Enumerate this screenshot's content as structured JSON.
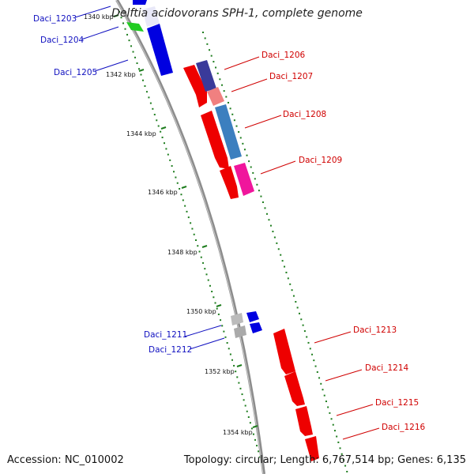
{
  "title": "Delftia acidovorans SPH-1, complete genome",
  "footer": {
    "accession": "Accession: NC_010002",
    "summary": "Topology: circular; Length: 6,767,514 bp; Genes: 6,135"
  },
  "colors": {
    "backbone": "#8c8c8c",
    "tick_green": "#1e7d1e",
    "label_blue": "#1010c0",
    "label_red": "#d00000"
  },
  "ticks": [
    {
      "label": "1340 kbp"
    },
    {
      "label": "1342 kbp"
    },
    {
      "label": "1344 kbp"
    },
    {
      "label": "1346 kbp"
    },
    {
      "label": "1348 kbp"
    },
    {
      "label": "1350 kbp"
    },
    {
      "label": "1352 kbp"
    },
    {
      "label": "1354 kbp"
    }
  ],
  "gene_labels": [
    {
      "name": "Daci_1203",
      "color": "#1010c0"
    },
    {
      "name": "Daci_1204",
      "color": "#1010c0"
    },
    {
      "name": "Daci_1205",
      "color": "#1010c0"
    },
    {
      "name": "Daci_1206",
      "color": "#d00000"
    },
    {
      "name": "Daci_1207",
      "color": "#d00000"
    },
    {
      "name": "Daci_1208",
      "color": "#d00000"
    },
    {
      "name": "Daci_1209",
      "color": "#d00000"
    },
    {
      "name": "Daci_1211",
      "color": "#1010c0"
    },
    {
      "name": "Daci_1212",
      "color": "#1010c0"
    },
    {
      "name": "Daci_1213",
      "color": "#d00000"
    },
    {
      "name": "Daci_1214",
      "color": "#d00000"
    },
    {
      "name": "Daci_1215",
      "color": "#d00000"
    },
    {
      "name": "Daci_1216",
      "color": "#d00000"
    }
  ]
}
